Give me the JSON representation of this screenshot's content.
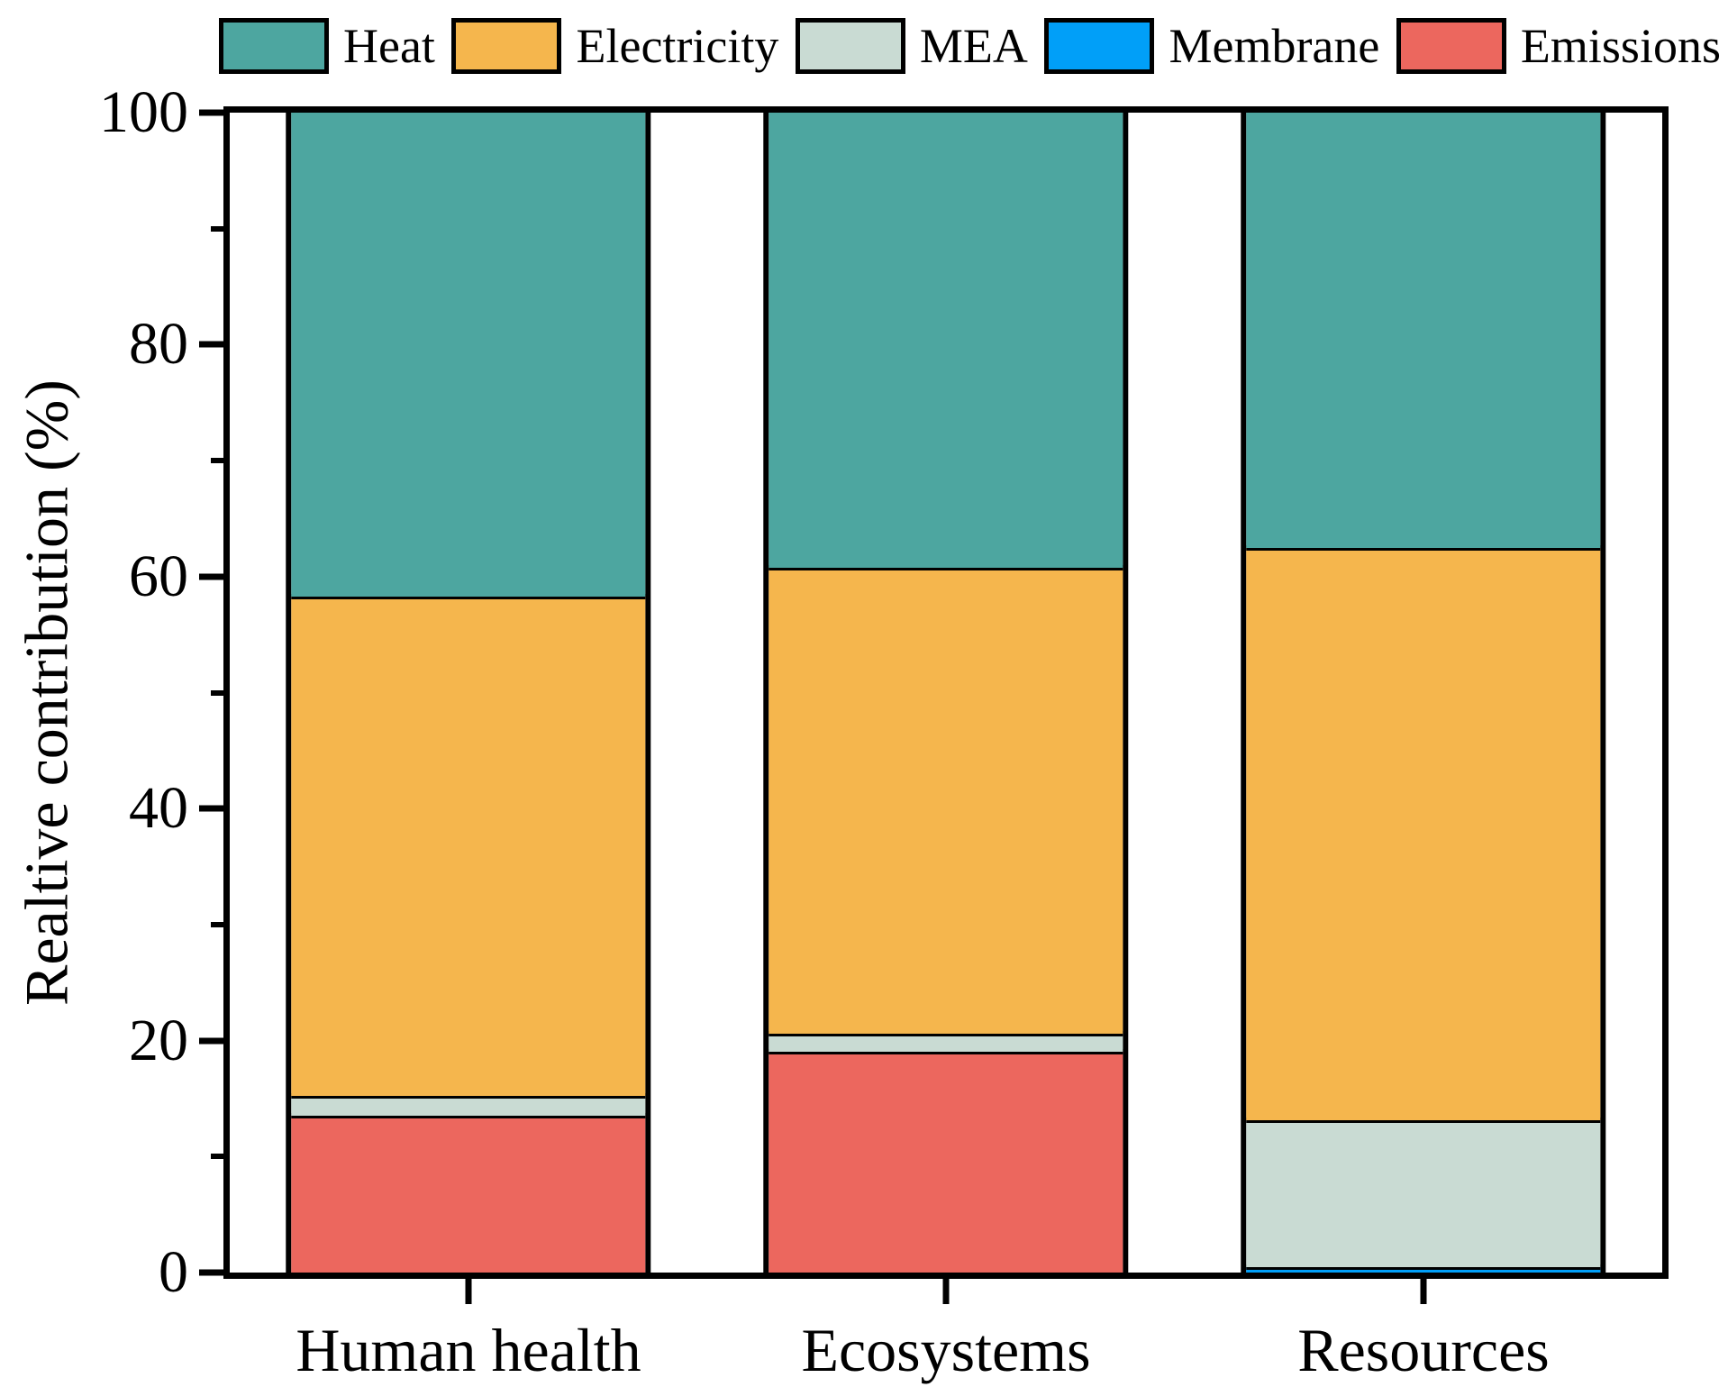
{
  "y_axis": {
    "label": "Realtive contribution (%)",
    "ticks": [
      0,
      20,
      40,
      60,
      80,
      100
    ],
    "minor_ticks": [
      10,
      30,
      50,
      70,
      90
    ],
    "range": [
      0,
      100
    ]
  },
  "legend": [
    {
      "label": "Heat",
      "color": "#4DA6A0"
    },
    {
      "label": "Electricity",
      "color": "#F5B64D"
    },
    {
      "label": "MEA",
      "color": "#C9DBD3"
    },
    {
      "label": "Membrane",
      "color": "#019FF8"
    },
    {
      "label": "Emissions",
      "color": "#EC675E"
    }
  ],
  "chart_data": {
    "type": "bar",
    "stacked": true,
    "title": "",
    "xlabel": "",
    "ylabel": "Realtive contribution (%)",
    "ylim": [
      0,
      100
    ],
    "grid": false,
    "legend_position": "top",
    "categories": [
      "Human health",
      "Ecosystems",
      "Resources"
    ],
    "series": [
      {
        "name": "Emissions",
        "color": "#EC675E",
        "values": [
          13.5,
          19.0,
          0.0
        ]
      },
      {
        "name": "Membrane",
        "color": "#019FF8",
        "values": [
          0.0,
          0.0,
          0.5
        ]
      },
      {
        "name": "MEA",
        "color": "#C9DBD3",
        "values": [
          1.7,
          1.6,
          12.6
        ]
      },
      {
        "name": "Electricity",
        "color": "#F5B64D",
        "values": [
          43.1,
          40.2,
          49.4
        ]
      },
      {
        "name": "Heat",
        "color": "#4DA6A0",
        "values": [
          41.7,
          39.2,
          37.5
        ]
      }
    ],
    "bar_centers_pct": [
      16.667,
      50,
      83.333
    ]
  }
}
